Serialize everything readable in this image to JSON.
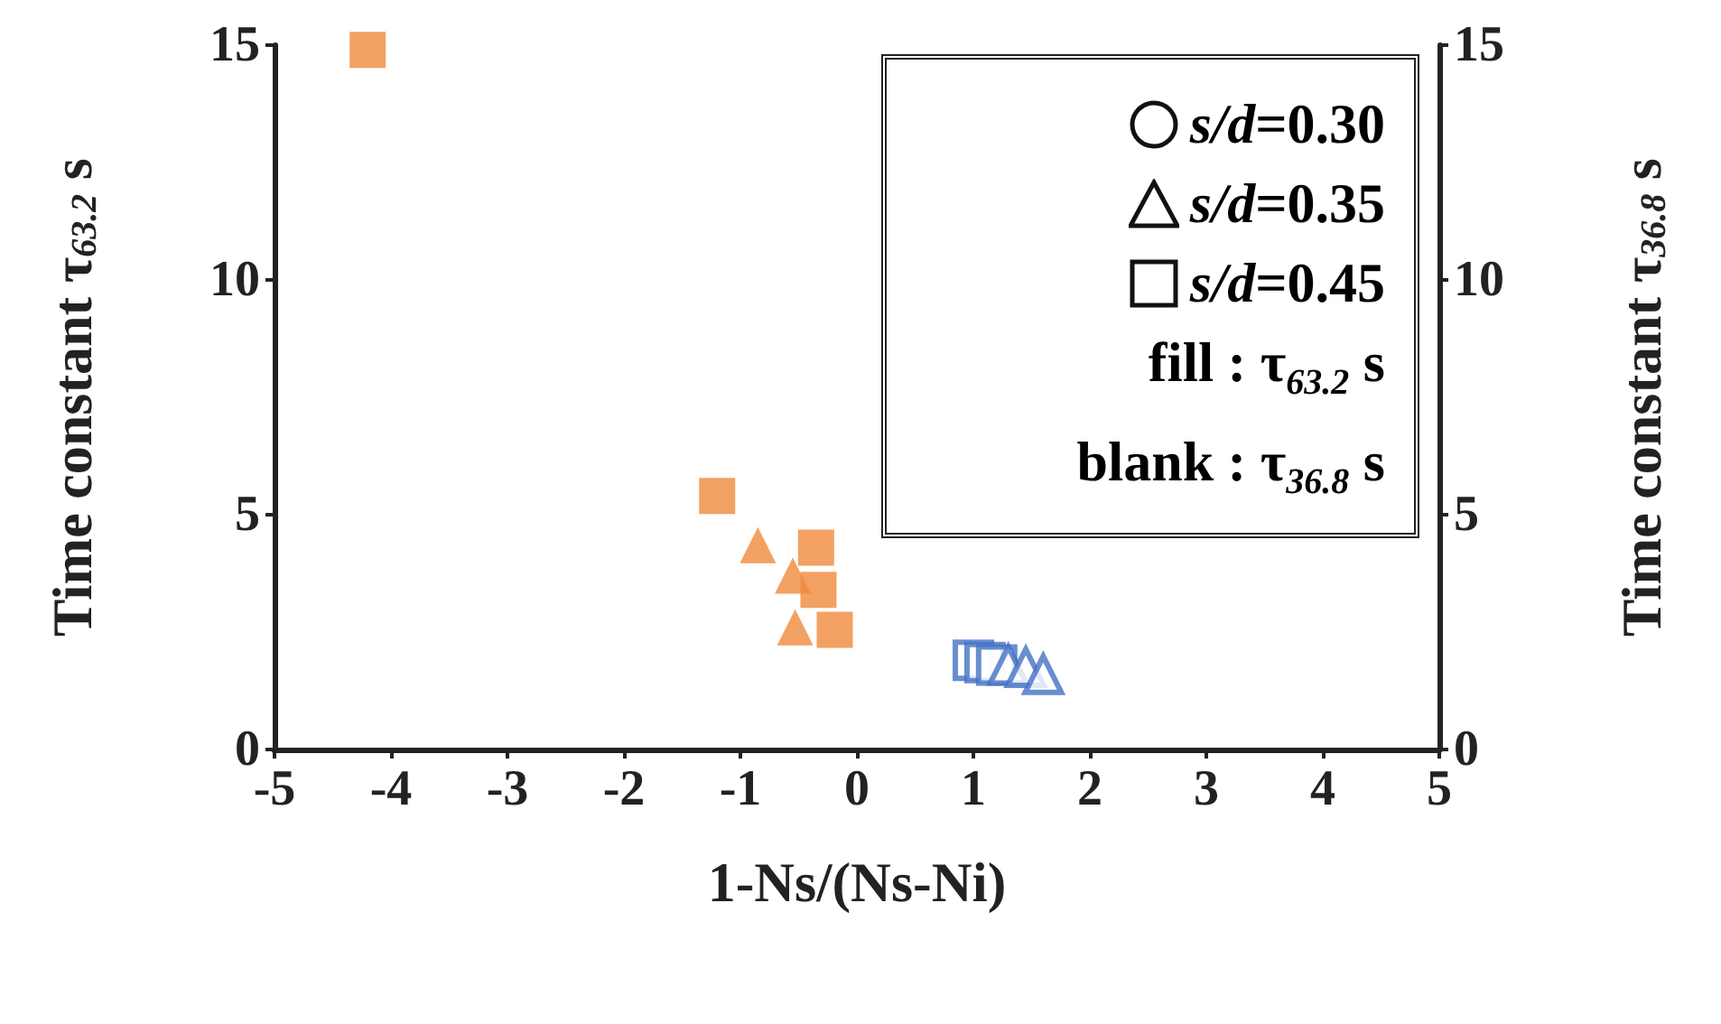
{
  "chart_data": {
    "type": "scatter",
    "xlabel": "1-Ns/(Ns-Ni)",
    "ylabel": "Time constant τ$_{63.2}$ s",
    "y2label": "Time constant τ$_{36.8}$ s",
    "xlim": [
      -5,
      5
    ],
    "xticks": [
      -5,
      -4,
      -3,
      -2,
      -1,
      0,
      1,
      2,
      3,
      4,
      5
    ],
    "ylim": [
      0,
      15
    ],
    "yticks": [
      0,
      5,
      10,
      15
    ],
    "y2lim": [
      0,
      15
    ],
    "y2ticks": [
      0,
      5,
      10,
      15
    ],
    "grid": false,
    "annotations": [
      "s/d=0.30",
      "s/d=0.35",
      "s/d=0.45",
      "fill : τ$_{63.2}$ s",
      "blank : τ$_{36.8}$ s"
    ],
    "series": [
      {
        "color": "#f08a3c",
        "marker": "square",
        "x": [
          -4.2,
          -1.2,
          -0.35,
          -0.33,
          -0.19
        ],
        "values": [
          14.9,
          5.4,
          4.3,
          3.4,
          2.55
        ]
      },
      {
        "color": "#f08a3c",
        "marker": "triangle",
        "x": [
          -0.85,
          -0.55,
          -0.53
        ],
        "values": [
          4.35,
          3.7,
          2.6
        ]
      },
      {
        "color": "#4472c4",
        "marker": "square",
        "axis": "y2",
        "x": [
          1.0,
          1.1,
          1.2
        ],
        "values": [
          1.9,
          1.85,
          1.8
        ]
      },
      {
        "color": "#4472c4",
        "marker": "triangle",
        "axis": "y2",
        "x": [
          1.3,
          1.45,
          1.6
        ],
        "values": [
          1.8,
          1.75,
          1.6
        ]
      }
    ]
  }
}
